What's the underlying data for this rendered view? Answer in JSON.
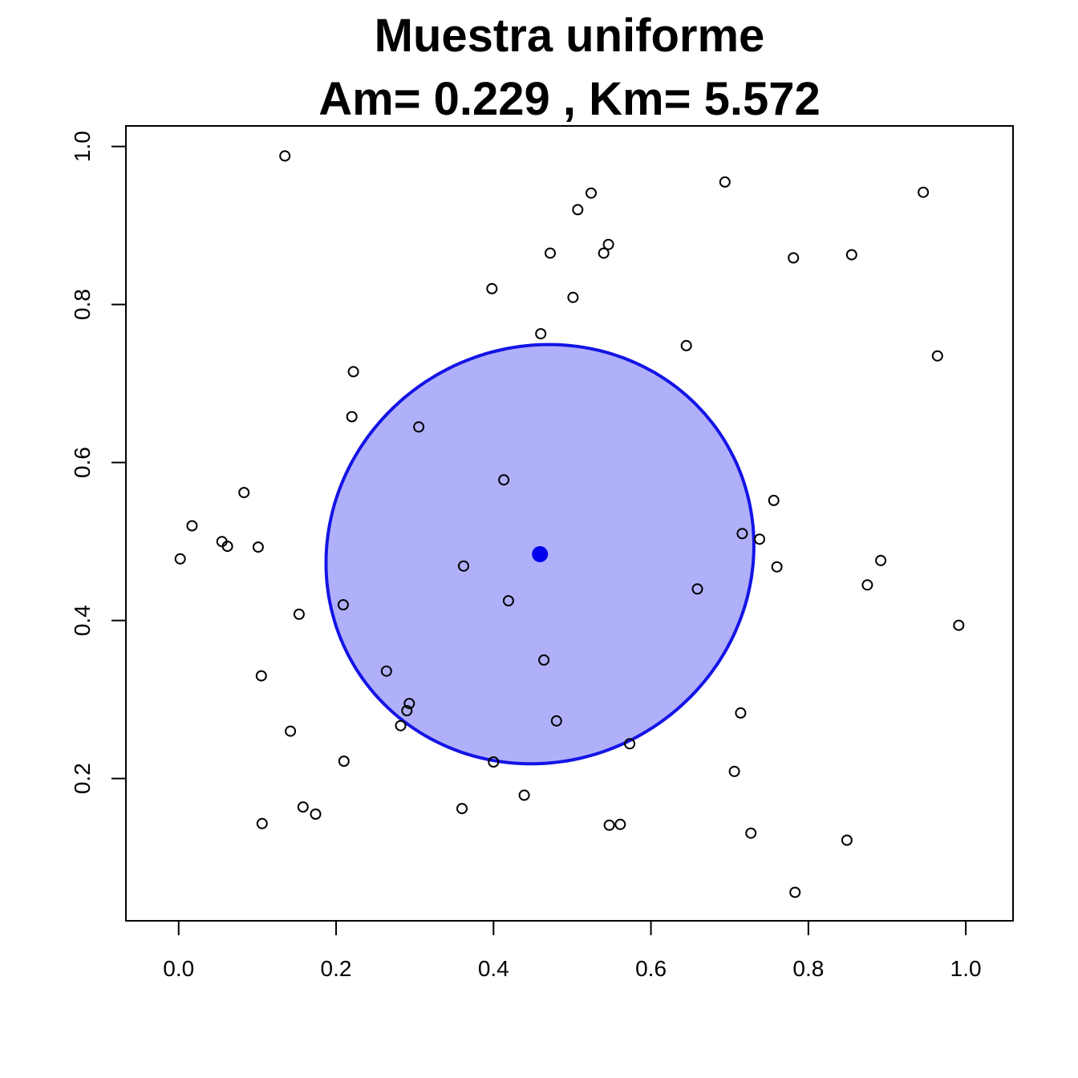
{
  "chart_data": {
    "type": "scatter",
    "title": "Muestra uniforme",
    "subtitle": "Am= 0.229 , Km= 5.572",
    "xlabel": "",
    "ylabel": "",
    "xlim": [
      -0.067,
      1.06
    ],
    "ylim": [
      0.02,
      1.026
    ],
    "xticks": [
      "0.0",
      "0.2",
      "0.4",
      "0.6",
      "0.8",
      "1.0"
    ],
    "yticks": [
      "0.2",
      "0.4",
      "0.6",
      "0.8",
      "1.0"
    ],
    "grid": false,
    "point_color": "#000000",
    "centroid": {
      "x": 0.459,
      "y": 0.484,
      "color": "#0000ee"
    },
    "ellipse": {
      "center_x": 0.459,
      "center_y": 0.484,
      "semi_major": 0.275,
      "semi_minor": 0.262,
      "angle_deg": 30,
      "fill": "#b0b0fa",
      "stroke": "#1414e6"
    },
    "points": [
      {
        "x": 0.135,
        "y": 0.988
      },
      {
        "x": 0.524,
        "y": 0.941
      },
      {
        "x": 0.507,
        "y": 0.92
      },
      {
        "x": 0.694,
        "y": 0.955
      },
      {
        "x": 0.946,
        "y": 0.942
      },
      {
        "x": 0.546,
        "y": 0.876
      },
      {
        "x": 0.54,
        "y": 0.865
      },
      {
        "x": 0.472,
        "y": 0.865
      },
      {
        "x": 0.781,
        "y": 0.859
      },
      {
        "x": 0.855,
        "y": 0.863
      },
      {
        "x": 0.398,
        "y": 0.82
      },
      {
        "x": 0.501,
        "y": 0.809
      },
      {
        "x": 0.46,
        "y": 0.763
      },
      {
        "x": 0.645,
        "y": 0.748
      },
      {
        "x": 0.964,
        "y": 0.735
      },
      {
        "x": 0.222,
        "y": 0.715
      },
      {
        "x": 0.22,
        "y": 0.658
      },
      {
        "x": 0.305,
        "y": 0.645
      },
      {
        "x": 0.083,
        "y": 0.562
      },
      {
        "x": 0.413,
        "y": 0.578
      },
      {
        "x": 0.756,
        "y": 0.552
      },
      {
        "x": 0.017,
        "y": 0.52
      },
      {
        "x": 0.055,
        "y": 0.5
      },
      {
        "x": 0.062,
        "y": 0.494
      },
      {
        "x": 0.101,
        "y": 0.493
      },
      {
        "x": 0.002,
        "y": 0.478
      },
      {
        "x": 0.716,
        "y": 0.51
      },
      {
        "x": 0.738,
        "y": 0.503
      },
      {
        "x": 0.362,
        "y": 0.469
      },
      {
        "x": 0.76,
        "y": 0.468
      },
      {
        "x": 0.892,
        "y": 0.476
      },
      {
        "x": 0.875,
        "y": 0.445
      },
      {
        "x": 0.659,
        "y": 0.44
      },
      {
        "x": 0.419,
        "y": 0.425
      },
      {
        "x": 0.209,
        "y": 0.42
      },
      {
        "x": 0.153,
        "y": 0.408
      },
      {
        "x": 0.991,
        "y": 0.394
      },
      {
        "x": 0.464,
        "y": 0.35
      },
      {
        "x": 0.264,
        "y": 0.336
      },
      {
        "x": 0.105,
        "y": 0.33
      },
      {
        "x": 0.293,
        "y": 0.295
      },
      {
        "x": 0.29,
        "y": 0.286
      },
      {
        "x": 0.714,
        "y": 0.283
      },
      {
        "x": 0.48,
        "y": 0.273
      },
      {
        "x": 0.282,
        "y": 0.267
      },
      {
        "x": 0.142,
        "y": 0.26
      },
      {
        "x": 0.573,
        "y": 0.244
      },
      {
        "x": 0.21,
        "y": 0.222
      },
      {
        "x": 0.4,
        "y": 0.221
      },
      {
        "x": 0.706,
        "y": 0.209
      },
      {
        "x": 0.439,
        "y": 0.179
      },
      {
        "x": 0.158,
        "y": 0.164
      },
      {
        "x": 0.36,
        "y": 0.162
      },
      {
        "x": 0.174,
        "y": 0.155
      },
      {
        "x": 0.106,
        "y": 0.143
      },
      {
        "x": 0.547,
        "y": 0.141
      },
      {
        "x": 0.561,
        "y": 0.142
      },
      {
        "x": 0.727,
        "y": 0.131
      },
      {
        "x": 0.849,
        "y": 0.122
      },
      {
        "x": 0.783,
        "y": 0.056
      }
    ]
  }
}
